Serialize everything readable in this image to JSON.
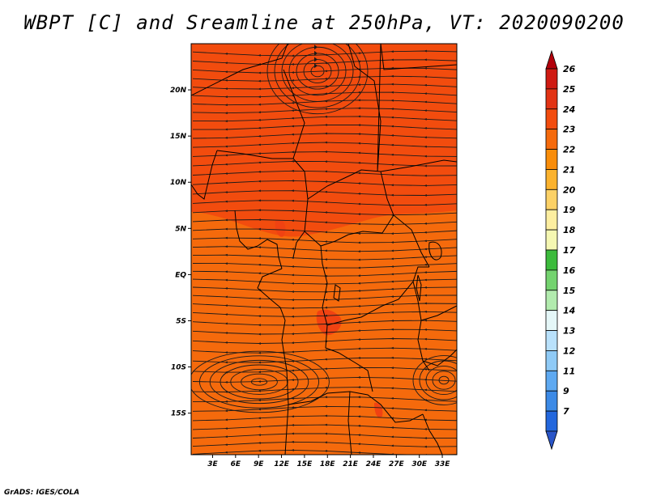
{
  "title": "WBPT [C] and Sreamline at 250hPa, VT: 2020090200",
  "footer": "GrADS: IGES/COLA",
  "map": {
    "variable": "WBPT",
    "unit": "C",
    "level": "250hPa",
    "valid_time": "2020090200",
    "lat_range": [
      -19.5,
      25
    ],
    "lon_range": [
      0.2,
      34.9
    ],
    "lat_ticks": [
      "20N",
      "15N",
      "10N",
      "5N",
      "EQ",
      "5S",
      "10S",
      "15S"
    ],
    "lat_values": [
      20,
      15,
      10,
      5,
      0,
      -5,
      -10,
      -15
    ],
    "lon_ticks": [
      "3E",
      "6E",
      "9E",
      "12E",
      "15E",
      "18E",
      "21E",
      "24E",
      "27E",
      "30E",
      "33E"
    ],
    "lon_values": [
      3,
      6,
      9,
      12,
      15,
      18,
      21,
      24,
      27,
      30,
      33
    ],
    "colors": {
      "field_south": "#f56a0c",
      "field_north": "#f24c0e",
      "field_patch": "#f04212",
      "streamline": "#1a1a1a",
      "border": "#000000"
    }
  },
  "colorbar": {
    "labels": [
      "26",
      "25",
      "24",
      "23",
      "22",
      "21",
      "20",
      "19",
      "18",
      "17",
      "16",
      "15",
      "14",
      "13",
      "12",
      "11",
      "9",
      "7"
    ],
    "colors": [
      "#b3000b",
      "#cf1a12",
      "#e23314",
      "#f24c0e",
      "#f56a0c",
      "#f98d0a",
      "#fbb22d",
      "#fcd166",
      "#fdeea0",
      "#f5f7b2",
      "#3cbb3c",
      "#74d36f",
      "#b2ebae",
      "#e5f7f8",
      "#b9e1fb",
      "#8fcaf6",
      "#5ea9f1",
      "#3c8ae6",
      "#2367dd",
      "#2a55c8"
    ]
  }
}
